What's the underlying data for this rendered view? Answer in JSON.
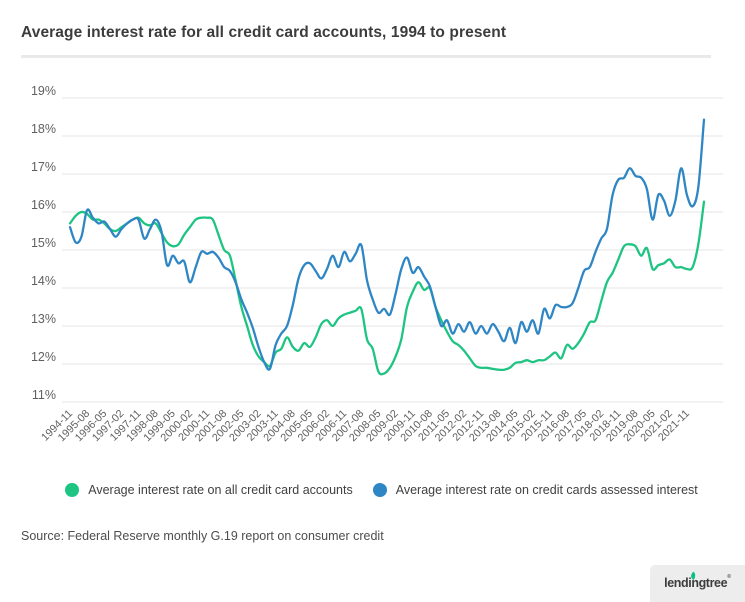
{
  "page": {
    "title": "Average interest rate for all credit card accounts, 1994 to present",
    "source": "Source: Federal Reserve monthly G.19 report on consumer credit",
    "logo_text": "lendingtree",
    "logo_mark": "®",
    "logo_leaf_color": "#0bc17c",
    "background_color": "#ffffff",
    "divider_color": "#e9e9e9"
  },
  "legend": [
    {
      "label": "Average interest rate on all credit card accounts",
      "color": "#1ec482"
    },
    {
      "label": "Average interest rate on credit cards assessed interest",
      "color": "#2f86c4"
    }
  ],
  "chart_data": {
    "type": "line",
    "title": "Average interest rate for all credit card accounts, 1994 to present",
    "unit": "%",
    "grid": "horizontal-only",
    "gridline_color": "#e4e4e4",
    "axis_label_color": "#606060",
    "legend_position": "bottom-center",
    "y_axis": {
      "min": 11,
      "max": 19,
      "step": 1,
      "tick_suffix": "%",
      "tick_labels": [
        "11%",
        "12%",
        "13%",
        "14%",
        "15%",
        "16%",
        "17%",
        "18%",
        "19%"
      ]
    },
    "x_axis": {
      "start": "1994-11",
      "step_months": 3,
      "points": 112,
      "tick_every": 3,
      "tick_labels": [
        "1994-11",
        "1995-08",
        "1996-05",
        "1997-02",
        "1997-11",
        "1998-08",
        "1999-05",
        "2000-02",
        "2000-11",
        "2001-08",
        "2002-05",
        "2003-02",
        "2003-11",
        "2004-08",
        "2005-05",
        "2006-02",
        "2006-11",
        "2007-08",
        "2008-05",
        "2009-02",
        "2009-11",
        "2010-08",
        "2011-05",
        "2012-02",
        "2012-11",
        "2013-08",
        "2014-05",
        "2015-02",
        "2015-11",
        "2016-08",
        "2017-05",
        "2018-02",
        "2018-11",
        "2019-08",
        "2020-05",
        "2021-02",
        "2021-11"
      ]
    },
    "series": [
      {
        "id": "all-accounts",
        "name": "Average interest rate on all credit card accounts",
        "color": "#1ec482",
        "values": [
          15.7,
          15.9,
          16.0,
          15.95,
          15.8,
          15.8,
          15.7,
          15.55,
          15.5,
          15.6,
          15.7,
          15.8,
          15.85,
          15.7,
          15.65,
          15.7,
          15.45,
          15.2,
          15.1,
          15.15,
          15.4,
          15.6,
          15.8,
          15.85,
          15.85,
          15.8,
          15.4,
          15.0,
          14.85,
          14.2,
          13.5,
          13.0,
          12.5,
          12.2,
          12.05,
          11.95,
          12.3,
          12.4,
          12.7,
          12.45,
          12.35,
          12.55,
          12.45,
          12.7,
          13.05,
          13.15,
          13.0,
          13.2,
          13.3,
          13.35,
          13.4,
          13.45,
          12.65,
          12.4,
          11.8,
          11.75,
          11.9,
          12.2,
          12.65,
          13.5,
          13.9,
          14.15,
          13.95,
          14.0,
          13.5,
          13.15,
          12.85,
          12.6,
          12.5,
          12.35,
          12.15,
          11.95,
          11.9,
          11.9,
          11.87,
          11.85,
          11.85,
          11.9,
          12.03,
          12.05,
          12.1,
          12.05,
          12.1,
          12.1,
          12.2,
          12.3,
          12.15,
          12.5,
          12.4,
          12.55,
          12.8,
          13.1,
          13.15,
          13.65,
          14.15,
          14.4,
          14.75,
          15.1,
          15.15,
          15.1,
          14.85,
          15.05,
          14.5,
          14.6,
          14.65,
          14.75,
          14.55,
          14.55,
          14.5,
          14.55,
          15.15,
          16.27
        ]
      },
      {
        "id": "assessed-interest",
        "name": "Average interest rate on credit cards assessed interest",
        "color": "#2f86c4",
        "values": [
          15.6,
          15.2,
          15.35,
          16.05,
          15.85,
          15.7,
          15.75,
          15.55,
          15.35,
          15.55,
          15.7,
          15.8,
          15.8,
          15.3,
          15.55,
          15.8,
          15.5,
          14.6,
          14.85,
          14.65,
          14.7,
          14.15,
          14.55,
          14.95,
          14.9,
          14.95,
          14.8,
          14.55,
          14.45,
          14.15,
          13.7,
          13.35,
          12.95,
          12.45,
          12.05,
          11.87,
          12.5,
          12.8,
          13.0,
          13.55,
          14.25,
          14.6,
          14.65,
          14.45,
          14.25,
          14.5,
          14.85,
          14.55,
          14.95,
          14.7,
          14.9,
          15.13,
          14.2,
          13.7,
          13.35,
          13.45,
          13.3,
          13.85,
          14.5,
          14.8,
          14.4,
          14.55,
          14.3,
          14.05,
          13.5,
          13.0,
          13.15,
          12.8,
          13.05,
          12.85,
          13.1,
          12.8,
          13.0,
          12.8,
          13.05,
          12.85,
          12.6,
          12.95,
          12.55,
          13.1,
          12.85,
          13.15,
          12.8,
          13.45,
          13.2,
          13.55,
          13.5,
          13.5,
          13.6,
          14.0,
          14.45,
          14.55,
          14.95,
          15.3,
          15.55,
          16.45,
          16.85,
          16.9,
          17.15,
          16.95,
          16.9,
          16.6,
          15.8,
          16.45,
          16.3,
          15.9,
          16.3,
          17.15,
          16.45,
          16.15,
          16.65,
          18.43
        ]
      }
    ]
  }
}
